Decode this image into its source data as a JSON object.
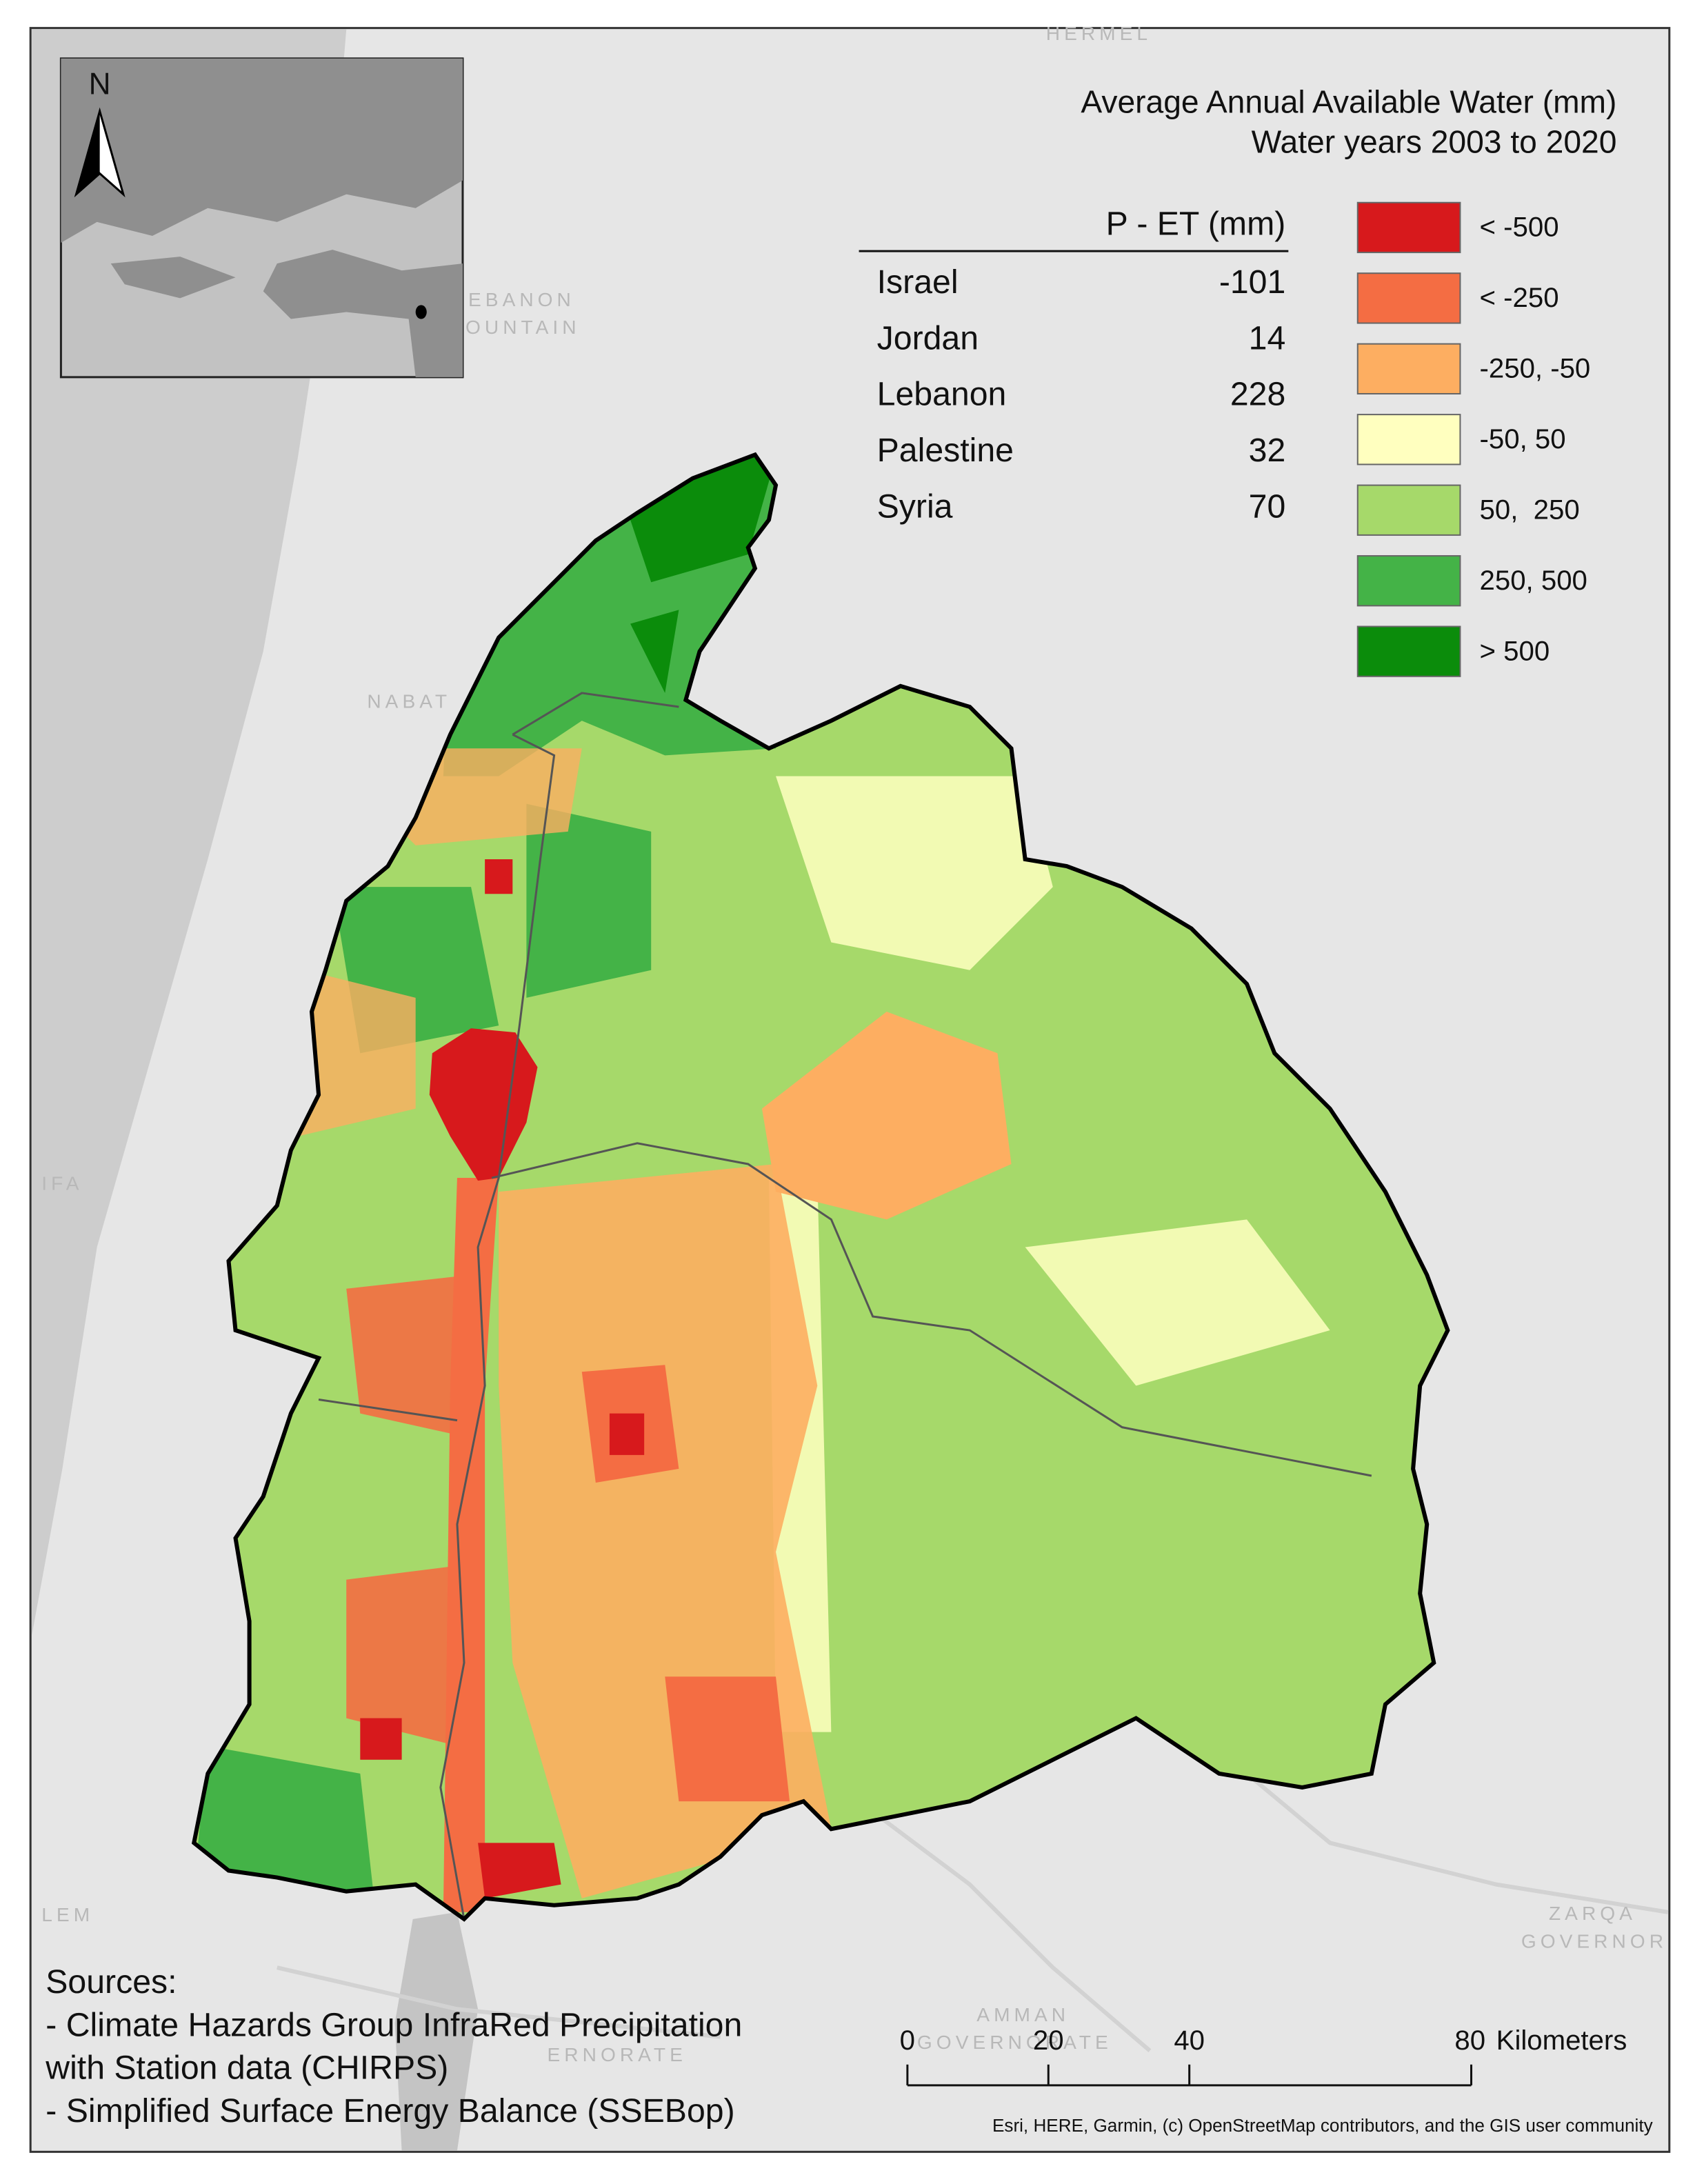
{
  "title": [
    "Average Annual Available Water (mm)",
    "Water years 2003 to 2020"
  ],
  "north_arrow": "N",
  "table": {
    "header": "P - ET (mm)",
    "rows": [
      [
        "Israel",
        -101
      ],
      [
        "Jordan",
        14
      ],
      [
        "Lebanon",
        228
      ],
      [
        "Palestine",
        32
      ],
      [
        "Syria",
        70
      ]
    ]
  },
  "legend": [
    {
      "label": "< -500",
      "color": "#d7191c"
    },
    {
      "label": "< -250",
      "color": "#f46d43"
    },
    {
      "label": "-250, -50",
      "color": "#fdae61"
    },
    {
      "label": "-50, 50",
      "color": "#ffffbf"
    },
    {
      "label": "50,  250",
      "color": "#a6d96a"
    },
    {
      "label": "250, 500",
      "color": "#44b347"
    },
    {
      "label": "> 500",
      "color": "#0b8c0b"
    }
  ],
  "sources": [
    "Sources:",
    "- Climate Hazards Group InfraRed Precipitation",
    "with Station data (CHIRPS)",
    "- Simplified Surface Energy Balance (SSEBop)"
  ],
  "scale_bar": {
    "ticks": [
      0,
      20,
      40,
      80
    ],
    "unit": "Kilometers"
  },
  "attribution": "Esri, HERE, Garmin, (c) OpenStreetMap contributors, and the GIS user community",
  "place_labels": [
    "HERMEL",
    "EBANON",
    "OUNTAIN",
    "NABAT",
    "IFA",
    "LEM",
    "ZARQA",
    "GOVERNOR",
    "AMMAN",
    "GOVERNORATE",
    "ERNORATE"
  ]
}
